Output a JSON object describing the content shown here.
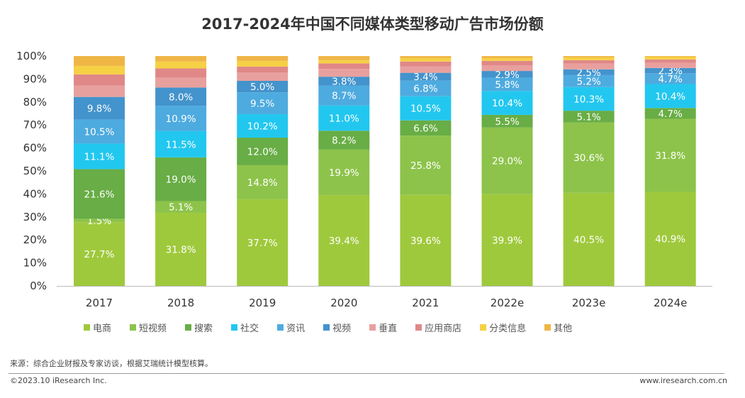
{
  "chart_data": {
    "type": "bar",
    "stacked": true,
    "title": "2017-2024年中国不同媒体类型移动广告市场份额",
    "categories": [
      "2017",
      "2018",
      "2019",
      "2020",
      "2021",
      "2022e",
      "2023e",
      "2024e"
    ],
    "ylim": [
      0,
      100
    ],
    "yticks": [
      "0%",
      "10%",
      "20%",
      "30%",
      "40%",
      "50%",
      "60%",
      "70%",
      "80%",
      "90%",
      "100%"
    ],
    "grid": false,
    "legend_position": "bottom",
    "series": [
      {
        "name": "电商",
        "color": "#9fc93c",
        "values": [
          27.7,
          31.8,
          37.7,
          39.4,
          39.6,
          39.9,
          40.5,
          40.9
        ],
        "labeled": true
      },
      {
        "name": "短视频",
        "color": "#8dc34a",
        "values": [
          1.5,
          5.1,
          14.8,
          19.9,
          25.8,
          29.0,
          30.6,
          31.8
        ],
        "labeled": true
      },
      {
        "name": "搜索",
        "color": "#68ad45",
        "values": [
          21.6,
          19.0,
          12.0,
          8.2,
          6.6,
          5.5,
          5.1,
          4.7
        ],
        "labeled": true
      },
      {
        "name": "社交",
        "color": "#22c7ef",
        "values": [
          11.1,
          11.5,
          10.2,
          11.0,
          10.5,
          10.4,
          10.3,
          10.4
        ],
        "labeled": true
      },
      {
        "name": "资讯",
        "color": "#4eabdf",
        "values": [
          10.5,
          10.9,
          9.5,
          8.7,
          6.8,
          5.8,
          5.2,
          4.7
        ],
        "labeled": true
      },
      {
        "name": "视频",
        "color": "#4393cc",
        "values": [
          9.8,
          8.0,
          5.0,
          3.8,
          3.4,
          2.9,
          2.5,
          2.3
        ],
        "labeled": true
      },
      {
        "name": "垂直",
        "color": "#e8a09e",
        "values": [
          4.9,
          4.3,
          3.7,
          3.4,
          2.8,
          2.5,
          2.5,
          2.2
        ],
        "labeled": false
      },
      {
        "name": "应用商店",
        "color": "#e08888",
        "values": [
          4.9,
          4.0,
          2.5,
          2.4,
          2.1,
          1.9,
          1.5,
          1.5
        ],
        "labeled": false
      },
      {
        "name": "分类信息",
        "color": "#f6d045",
        "values": [
          3.7,
          3.0,
          2.5,
          1.4,
          1.5,
          1.2,
          1.2,
          1.2
        ],
        "labeled": false
      },
      {
        "name": "其他",
        "color": "#efb646",
        "values": [
          4.3,
          2.4,
          2.1,
          1.8,
          0.9,
          0.9,
          0.6,
          0.3
        ],
        "labeled": false
      }
    ]
  },
  "footer": {
    "source": "来源：综合企业财报及专家访谈，根据艾瑞统计模型核算。",
    "copyright": "©2023.10 iResearch Inc.",
    "website": "www.iresearch.com.cn"
  }
}
